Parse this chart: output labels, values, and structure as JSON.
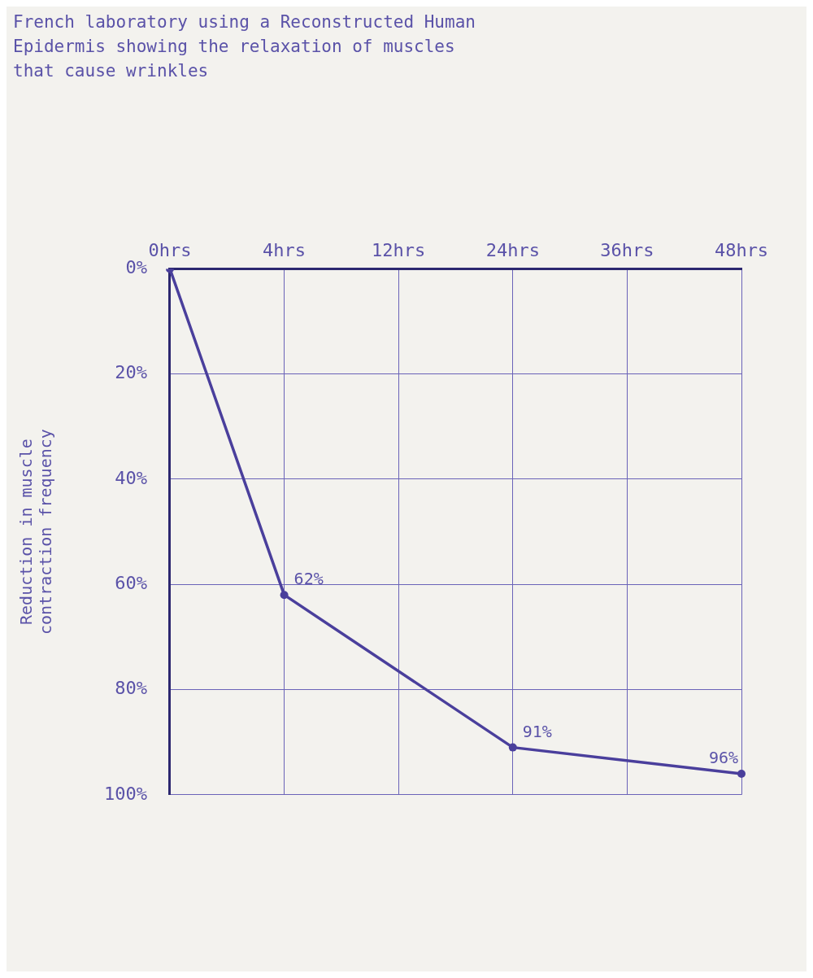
{
  "chart_data": {
    "type": "line",
    "subtitle": "French laboratory using a Reconstructed Human\nEpidermis showing the relaxation of muscles\nthat cause wrinkles",
    "ylabel": "Reduction in muscle\ncontraction frequency",
    "categories": [
      "0hrs",
      "4hrs",
      "12hrs",
      "24hrs",
      "36hrs",
      "48hrs"
    ],
    "series": [
      {
        "color": "#4a3f9c",
        "values": [
          0,
          62,
          null,
          91,
          null,
          96
        ],
        "value_labels": [
          null,
          "62%",
          null,
          "91%",
          null,
          "96%"
        ]
      }
    ],
    "ylim": [
      100,
      0
    ],
    "yticks": [
      {
        "value": 0,
        "label": "0%"
      },
      {
        "value": 20,
        "label": "20%"
      },
      {
        "value": 40,
        "label": "40%"
      },
      {
        "value": 60,
        "label": "60%"
      },
      {
        "value": 80,
        "label": "80%"
      },
      {
        "value": 100,
        "label": "100%"
      }
    ],
    "grid": true,
    "marker": "circle",
    "line_style": "solid",
    "legend": false
  }
}
